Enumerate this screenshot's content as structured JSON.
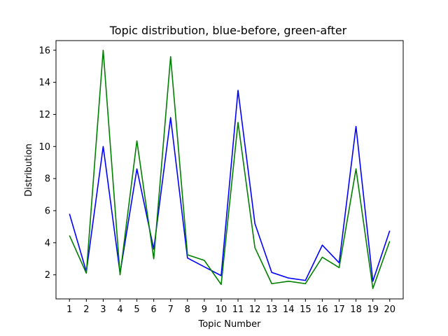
{
  "chart_data": {
    "type": "line",
    "title": "Topic distribution, blue-before, green-after",
    "xlabel": "Topic Number",
    "ylabel": "Distribution",
    "x": [
      1,
      2,
      3,
      4,
      5,
      6,
      7,
      8,
      9,
      10,
      11,
      12,
      13,
      14,
      15,
      16,
      17,
      18,
      19,
      20
    ],
    "xlim": [
      0.2,
      20.8
    ],
    "ylim": [
      0.5,
      16.6
    ],
    "yticks": [
      2,
      4,
      6,
      8,
      10,
      12,
      14,
      16
    ],
    "grid": false,
    "series": [
      {
        "color": "#0000ff",
        "values": [
          5.8,
          2.2,
          10.0,
          2.1,
          8.6,
          3.6,
          11.8,
          3.05,
          2.5,
          1.95,
          13.5,
          5.2,
          2.15,
          1.8,
          1.65,
          3.85,
          2.75,
          11.25,
          1.6,
          4.75
        ]
      },
      {
        "color": "#008000",
        "values": [
          4.45,
          2.1,
          16.0,
          2.0,
          10.35,
          3.0,
          15.6,
          3.25,
          2.9,
          1.4,
          11.5,
          3.7,
          1.45,
          1.6,
          1.45,
          3.1,
          2.45,
          8.6,
          1.15,
          4.1
        ]
      }
    ]
  }
}
